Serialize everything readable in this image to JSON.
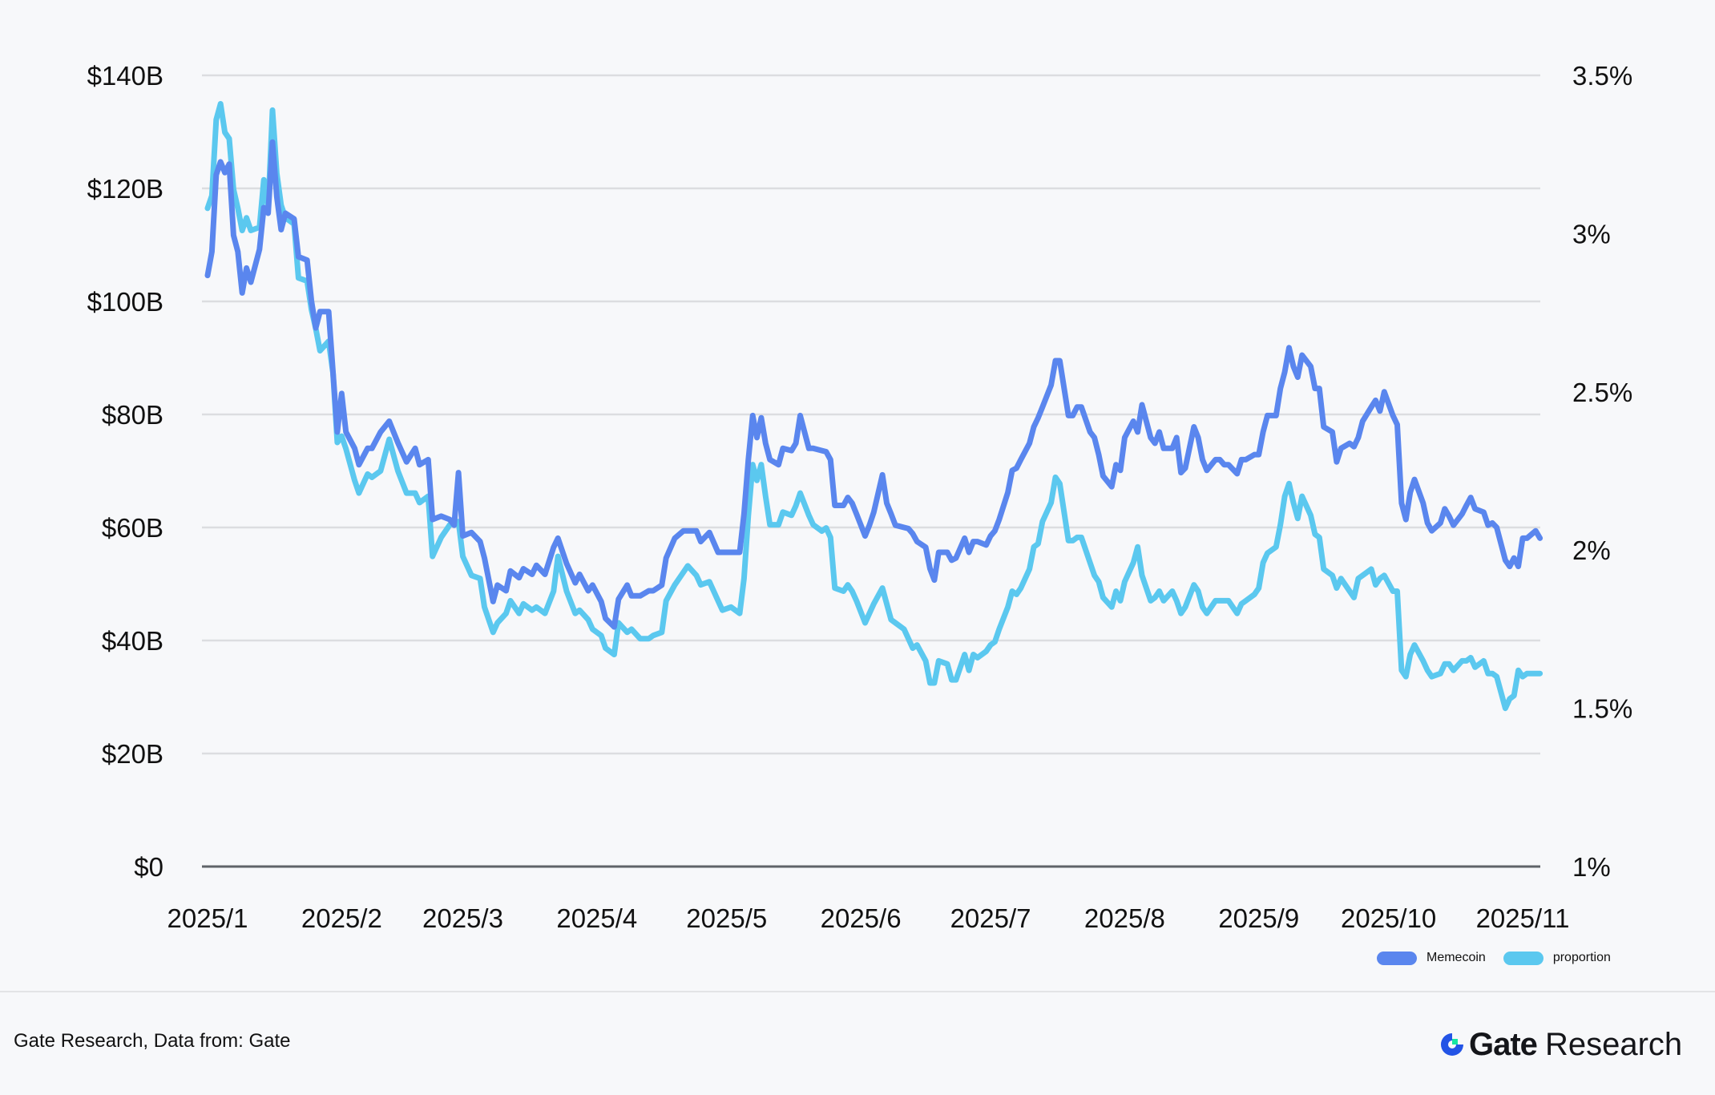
{
  "chart_data": {
    "type": "line",
    "title": "",
    "xlabel": "",
    "ylabel": "",
    "y_left": {
      "ticks": [
        "$0",
        "$20B",
        "$40B",
        "$60B",
        "$80B",
        "$100B",
        "$120B",
        "$140B"
      ],
      "range": [
        0,
        140
      ],
      "unit": "USD billions"
    },
    "y_right": {
      "ticks": [
        "1%",
        "1.5%",
        "2%",
        "2.5%",
        "3%",
        "3.5%"
      ],
      "range": [
        1,
        3.5
      ],
      "unit": "percent"
    },
    "x_ticks": [
      {
        "label": "2025/1",
        "day": 0
      },
      {
        "label": "2025/2",
        "day": 31
      },
      {
        "label": "2025/3",
        "day": 59
      },
      {
        "label": "2025/4",
        "day": 90
      },
      {
        "label": "2025/5",
        "day": 120
      },
      {
        "label": "2025/6",
        "day": 151
      },
      {
        "label": "2025/7",
        "day": 181
      },
      {
        "label": "2025/8",
        "day": 212
      },
      {
        "label": "2025/9",
        "day": 243
      },
      {
        "label": "2025/10",
        "day": 273
      },
      {
        "label": "2025/11",
        "day": 304
      }
    ],
    "x_unit": "days since 2025/1/1",
    "grid": true,
    "legend_position": "bottom-right",
    "x": [
      0,
      1,
      2,
      3,
      4,
      5,
      6,
      7,
      8,
      9,
      10,
      12,
      13,
      14,
      15,
      16,
      17,
      18,
      20,
      21,
      23,
      24,
      25,
      26,
      28,
      29,
      30,
      31,
      32,
      34,
      35,
      37,
      38,
      40,
      42,
      44,
      46,
      48,
      49,
      51,
      52,
      54,
      56,
      57,
      58,
      59,
      61,
      63,
      64,
      66,
      67,
      69,
      70,
      72,
      73,
      75,
      76,
      78,
      80,
      81,
      83,
      85,
      86,
      88,
      89,
      91,
      92,
      94,
      95,
      97,
      98,
      100,
      102,
      103,
      105,
      106,
      108,
      110,
      111,
      113,
      114,
      116,
      118,
      119,
      121,
      123,
      124,
      125,
      126,
      127,
      128,
      129,
      130,
      132,
      133,
      135,
      136,
      137,
      139,
      140,
      142,
      143,
      144,
      145,
      147,
      148,
      149,
      150,
      152,
      153,
      154,
      156,
      157,
      158,
      159,
      161,
      162,
      163,
      164,
      166,
      167,
      168,
      169,
      171,
      172,
      173,
      175,
      176,
      177,
      178,
      180,
      181,
      182,
      183,
      185,
      186,
      187,
      188,
      190,
      191,
      192,
      193,
      195,
      196,
      197,
      199,
      200,
      201,
      202,
      204,
      205,
      206,
      207,
      209,
      210,
      211,
      212,
      214,
      215,
      216,
      218,
      219,
      220,
      221,
      223,
      224,
      225,
      226,
      228,
      229,
      230,
      231,
      233,
      234,
      235,
      236,
      238,
      239,
      240,
      242,
      243,
      244,
      245,
      247,
      248,
      249,
      250,
      251,
      252,
      253,
      255,
      256,
      257,
      258,
      260,
      261,
      262,
      264,
      265,
      266,
      267,
      269,
      270,
      271,
      272,
      274,
      275,
      276,
      277,
      278,
      279,
      281,
      282,
      283,
      285,
      286,
      287,
      288,
      290,
      291,
      292,
      293,
      295,
      296,
      297,
      298,
      300,
      301,
      302,
      303,
      304,
      305,
      307,
      308
    ],
    "series": [
      {
        "name": "Memecoin",
        "axis": "left",
        "color": "#5a86ee",
        "values": [
          104.6,
          108.8,
          122.4,
          124.7,
          122.8,
          124.3,
          111.7,
          108.8,
          101.5,
          105.9,
          103.4,
          109.2,
          116.6,
          115.6,
          128.2,
          118.5,
          112.7,
          115.6,
          114.6,
          107.9,
          107.3,
          100.1,
          95.3,
          98.2,
          98.2,
          87.5,
          76.9,
          83.7,
          76.9,
          74.0,
          71.1,
          74.0,
          74.0,
          76.9,
          78.8,
          75.0,
          71.6,
          74.0,
          71.1,
          72.0,
          61.4,
          62.0,
          61.4,
          60.4,
          69.7,
          58.5,
          59.1,
          57.5,
          54.6,
          46.9,
          49.8,
          48.8,
          52.3,
          51.1,
          52.7,
          51.7,
          53.3,
          51.7,
          56.5,
          58.1,
          53.6,
          50.2,
          51.7,
          48.8,
          49.8,
          46.9,
          43.9,
          42.4,
          47.3,
          49.8,
          47.9,
          47.9,
          48.8,
          48.8,
          49.8,
          54.6,
          58.1,
          59.4,
          59.4,
          59.4,
          57.5,
          59.1,
          55.6,
          55.6,
          55.6,
          55.6,
          62.4,
          72.0,
          79.8,
          75.9,
          79.4,
          74.9,
          72.0,
          71.1,
          74.0,
          73.6,
          74.9,
          79.8,
          74.0,
          74.0,
          73.6,
          73.4,
          72.0,
          63.9,
          63.9,
          65.3,
          64.3,
          62.4,
          58.5,
          60.4,
          62.7,
          69.3,
          64.3,
          62.4,
          60.4,
          60.0,
          59.8,
          58.9,
          57.5,
          56.5,
          52.7,
          50.7,
          55.6,
          55.6,
          54.2,
          54.6,
          58.1,
          55.6,
          57.5,
          57.5,
          56.9,
          58.5,
          59.4,
          61.4,
          66.2,
          70.1,
          70.5,
          72.0,
          74.9,
          77.8,
          79.4,
          81.3,
          85.2,
          89.5,
          89.5,
          79.8,
          79.8,
          81.3,
          81.3,
          76.9,
          75.9,
          72.9,
          69.1,
          67.2,
          71.1,
          70.1,
          75.9,
          78.8,
          76.9,
          81.7,
          75.9,
          74.9,
          76.9,
          74.0,
          74.0,
          75.9,
          69.7,
          70.5,
          77.8,
          75.9,
          72.0,
          70.1,
          72.0,
          72.0,
          71.1,
          71.1,
          69.5,
          72.0,
          72.0,
          72.9,
          72.9,
          76.9,
          79.8,
          79.8,
          84.6,
          87.5,
          91.8,
          88.5,
          86.6,
          90.5,
          88.5,
          84.6,
          84.6,
          77.8,
          76.9,
          71.6,
          74.0,
          74.9,
          74.3,
          75.9,
          78.8,
          81.3,
          82.5,
          80.6,
          84.0,
          79.8,
          78.2,
          64.3,
          61.4,
          66.2,
          68.5,
          64.3,
          60.8,
          59.4,
          60.8,
          63.3,
          62.0,
          60.4,
          62.4,
          63.9,
          65.3,
          63.3,
          62.7,
          60.4,
          60.8,
          60.0,
          54.2,
          53.1,
          54.6,
          53.1,
          58.1,
          58.1,
          59.4,
          58.1
        ]
      },
      {
        "name": "proportion",
        "axis": "right",
        "color": "#5bc8ef",
        "values": [
          3.08,
          3.12,
          3.36,
          3.41,
          3.32,
          3.3,
          3.14,
          3.08,
          3.01,
          3.05,
          3.01,
          3.02,
          3.17,
          3.08,
          3.39,
          3.19,
          3.09,
          3.05,
          3.03,
          2.86,
          2.85,
          2.76,
          2.7,
          2.63,
          2.66,
          2.56,
          2.34,
          2.36,
          2.32,
          2.22,
          2.18,
          2.24,
          2.23,
          2.25,
          2.35,
          2.25,
          2.18,
          2.18,
          2.15,
          2.17,
          1.98,
          2.04,
          2.08,
          2.09,
          2.09,
          1.98,
          1.92,
          1.91,
          1.82,
          1.74,
          1.77,
          1.8,
          1.84,
          1.8,
          1.83,
          1.81,
          1.82,
          1.8,
          1.87,
          1.98,
          1.87,
          1.8,
          1.81,
          1.78,
          1.75,
          1.73,
          1.69,
          1.67,
          1.77,
          1.74,
          1.75,
          1.72,
          1.72,
          1.73,
          1.74,
          1.84,
          1.89,
          1.93,
          1.95,
          1.92,
          1.89,
          1.9,
          1.84,
          1.81,
          1.82,
          1.8,
          1.91,
          2.11,
          2.27,
          2.22,
          2.27,
          2.17,
          2.08,
          2.08,
          2.12,
          2.11,
          2.14,
          2.18,
          2.11,
          2.08,
          2.06,
          2.07,
          2.04,
          1.88,
          1.87,
          1.89,
          1.87,
          1.84,
          1.77,
          1.8,
          1.83,
          1.88,
          1.83,
          1.78,
          1.77,
          1.75,
          1.72,
          1.69,
          1.7,
          1.65,
          1.58,
          1.58,
          1.65,
          1.64,
          1.59,
          1.59,
          1.67,
          1.62,
          1.67,
          1.66,
          1.68,
          1.7,
          1.71,
          1.75,
          1.82,
          1.87,
          1.86,
          1.88,
          1.94,
          2.01,
          2.02,
          2.09,
          2.15,
          2.23,
          2.21,
          2.03,
          2.03,
          2.04,
          2.04,
          1.96,
          1.92,
          1.9,
          1.85,
          1.82,
          1.87,
          1.84,
          1.9,
          1.96,
          2.01,
          1.92,
          1.84,
          1.85,
          1.87,
          1.84,
          1.87,
          1.84,
          1.8,
          1.82,
          1.89,
          1.87,
          1.82,
          1.8,
          1.84,
          1.84,
          1.84,
          1.84,
          1.8,
          1.83,
          1.84,
          1.86,
          1.88,
          1.96,
          1.99,
          2.01,
          2.08,
          2.17,
          2.21,
          2.15,
          2.1,
          2.17,
          2.11,
          2.05,
          2.04,
          1.94,
          1.92,
          1.88,
          1.91,
          1.87,
          1.85,
          1.91,
          1.92,
          1.94,
          1.89,
          1.91,
          1.92,
          1.87,
          1.87,
          1.62,
          1.6,
          1.67,
          1.7,
          1.65,
          1.62,
          1.6,
          1.61,
          1.64,
          1.64,
          1.62,
          1.65,
          1.65,
          1.66,
          1.63,
          1.65,
          1.61,
          1.61,
          1.6,
          1.5,
          1.53,
          1.54,
          1.62,
          1.6,
          1.61,
          1.61,
          1.61
        ]
      }
    ]
  },
  "legend": [
    {
      "label": "Memecoin",
      "color": "#5a86ee"
    },
    {
      "label": "proportion",
      "color": "#5bc8ef"
    }
  ],
  "footer": {
    "source": "Gate Research, Data from: Gate",
    "brand_name": "Gate",
    "brand_suffix": "Research"
  }
}
